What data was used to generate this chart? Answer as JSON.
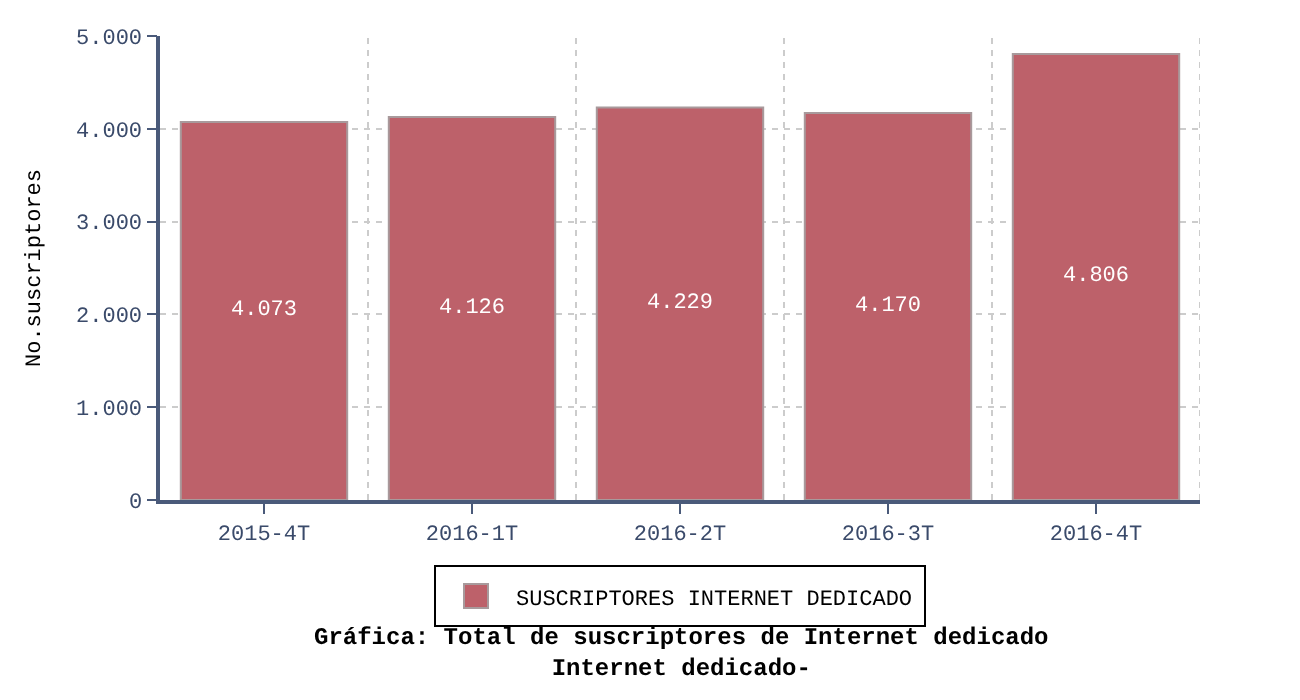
{
  "chart_data": {
    "type": "bar",
    "title": "Gráfica: Total de suscriptores de Internet dedicado",
    "subtitle": "Internet dedicado-",
    "ylabel": "No.suscriptores",
    "categories": [
      "2015-4T",
      "2016-1T",
      "2016-2T",
      "2016-3T",
      "2016-4T"
    ],
    "series": [
      {
        "name": "SUSCRIPTORES INTERNET DEDICADO",
        "color": "#bd616a",
        "values": [
          4073,
          4126,
          4229,
          4170,
          4806
        ],
        "value_labels": [
          "4.073",
          "4.126",
          "4.229",
          "4.170",
          "4.806"
        ]
      }
    ],
    "ylim": [
      0,
      5000
    ],
    "yticks": [
      0,
      {
        "value": 1000,
        "label": "1.000"
      },
      {
        "value": 2000,
        "label": "2.000"
      },
      {
        "value": 3000,
        "label": "3.000"
      },
      {
        "value": 4000,
        "label": "4.000"
      },
      {
        "value": 5000,
        "label": "5.000"
      }
    ],
    "grid": true,
    "legend": "bottom"
  }
}
